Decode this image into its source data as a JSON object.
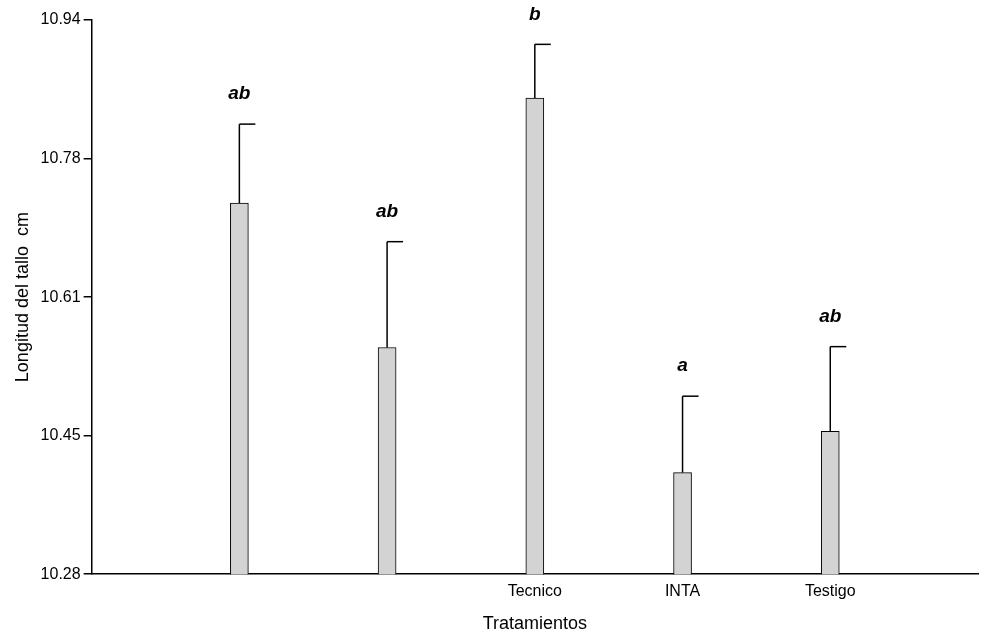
{
  "chart_data": {
    "type": "bar",
    "xlabel": "Tratamientos",
    "ylabel": "Longitud del tallo  cm",
    "categories": [
      null,
      null,
      "Tecnico",
      "INTA",
      "Testigo"
    ],
    "values": [
      10.722,
      10.55,
      10.847,
      10.401,
      10.45
    ],
    "errors": [
      [
        10.722,
        10.816
      ],
      [
        10.55,
        10.676
      ],
      [
        10.847,
        10.911
      ],
      [
        10.401,
        10.492
      ],
      [
        10.45,
        10.551
      ]
    ],
    "color": "#d3d3d3",
    "ylim": [
      10.28,
      10.94
    ],
    "yticks": [
      10.28,
      {
        "value": 10.445,
        "label": "10.45"
      },
      10.61,
      {
        "value": 10.775,
        "label": "10.78"
      },
      10.94
    ],
    "annotations": [
      "ab",
      "ab",
      "b",
      "a",
      "ab"
    ],
    "grid": false,
    "legend": false
  }
}
